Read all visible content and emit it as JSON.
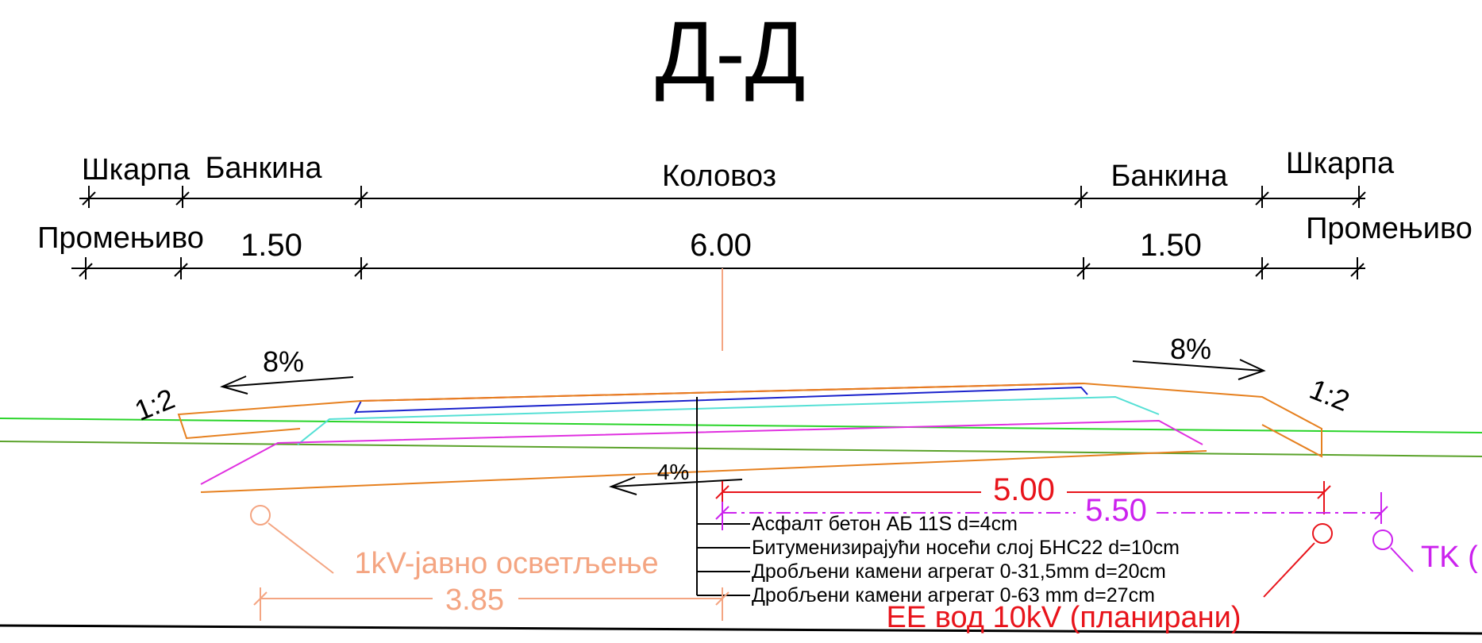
{
  "title": "Д-Д",
  "dimensions": {
    "labels": {
      "shkarpa_left": "Шкарпа",
      "bankina_left": "Банкина",
      "kolovoz": "Коловоз",
      "bankina_right": "Банкина",
      "shkarpa_right": "Шкарпа"
    },
    "values": {
      "shkarpa_left": "Промењиво",
      "bankina_left": "1.50",
      "kolovoz": "6.00",
      "bankina_right": "1.50",
      "shkarpa_right": "Промењиво"
    }
  },
  "slopes": {
    "road_left": "8%",
    "road_right": "8%",
    "embankment_left": "1:2",
    "embankment_right": "1:2",
    "ground": "4%"
  },
  "layers": [
    "Асфалт бетон АБ 11S d=4cm",
    "Битуменизирајући носећи слој БНС22 d=10cm",
    "Дробљени камени агрегат 0-31,5mm d=20cm",
    "Дробљени камени агрегат 0-63 mm d=27cm"
  ],
  "utilities": {
    "lighting": {
      "label": "1kV-јавно осветљење",
      "offset": "3.85",
      "color": "#f4a582"
    },
    "power": {
      "label": "ЕЕ вод 10kV (планирани)",
      "offset": "5.00",
      "color": "#e8141b"
    },
    "telecom": {
      "label": "TK (",
      "offset": "5.50",
      "color": "#cc22ee"
    }
  },
  "colors": {
    "linework": "#000000",
    "asphalt_top": "#e8141b",
    "asphalt_base": "#1a22cc",
    "subbase": "#55e0d5",
    "base_bottom": "#e030e0",
    "embankment": "#e6801f",
    "terrain_green": "#2ad42a",
    "terrain_olive": "#5aa22a"
  }
}
